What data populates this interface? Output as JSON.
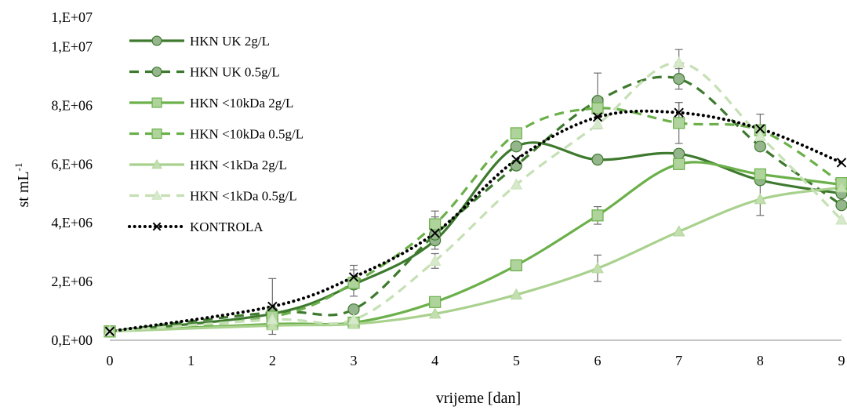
{
  "chart_data": {
    "type": "line",
    "title": "",
    "xlabel": "vrijeme [dan]",
    "ylabel": "st mL",
    "ylabel_superscript": "-1",
    "xlim": [
      0,
      9
    ],
    "ylim": [
      0,
      11000000
    ],
    "x_ticks": [
      0,
      1,
      2,
      3,
      4,
      5,
      6,
      7,
      8,
      9
    ],
    "y_ticks": [
      {
        "value": 0,
        "label": "0,E+00"
      },
      {
        "value": 2000000,
        "label": "2,E+06"
      },
      {
        "value": 4000000,
        "label": "4,E+06"
      },
      {
        "value": 6000000,
        "label": "6,E+06"
      },
      {
        "value": 8000000,
        "label": "8,E+06"
      },
      {
        "value": 10000000,
        "label": "1,E+07"
      },
      {
        "value": 11000000,
        "label": "1,E+07"
      }
    ],
    "grid": false,
    "legend_position": "top-left",
    "x": [
      0,
      2,
      3,
      4,
      5,
      6,
      7,
      8,
      9
    ],
    "series": [
      {
        "name": "HKN UK 2g/L",
        "color": "#3E7A2E",
        "dash": "solid",
        "marker": "circle",
        "values": [
          300000,
          900000,
          1900000,
          3400000,
          6600000,
          6150000,
          6350000,
          5450000,
          5000000
        ],
        "errors": [
          0,
          0,
          0,
          0,
          0,
          0,
          0,
          0,
          0
        ]
      },
      {
        "name": "HKN UK 0.5g/L",
        "color": "#3E7A2E",
        "dash": "dashed",
        "marker": "circle",
        "values": [
          300000,
          950000,
          1050000,
          3600000,
          5950000,
          8150000,
          8900000,
          6600000,
          4600000
        ],
        "errors": [
          0,
          0,
          0,
          0,
          0,
          950000,
          350000,
          0,
          0
        ]
      },
      {
        "name": "HKN <10kDa 2g/L",
        "color": "#6BB04A",
        "dash": "solid",
        "marker": "square",
        "values": [
          300000,
          550000,
          600000,
          1300000,
          2550000,
          4250000,
          6000000,
          5650000,
          5300000
        ],
        "errors": [
          0,
          0,
          0,
          0,
          0,
          300000,
          0,
          0,
          0
        ]
      },
      {
        "name": "HKN <10kDa 0.5g/L",
        "color": "#6BB04A",
        "dash": "dashed",
        "marker": "square",
        "values": [
          300000,
          800000,
          1950000,
          3950000,
          7050000,
          7900000,
          7400000,
          7150000,
          5350000
        ],
        "errors": [
          0,
          0,
          450000,
          450000,
          0,
          300000,
          700000,
          0,
          0
        ]
      },
      {
        "name": "HKN <1kDa 2g/L",
        "color": "#A9D18E",
        "dash": "solid",
        "marker": "triangle",
        "values": [
          300000,
          500000,
          550000,
          900000,
          1550000,
          2450000,
          3700000,
          4800000,
          5200000
        ],
        "errors": [
          0,
          0,
          0,
          0,
          0,
          450000,
          0,
          550000,
          0
        ]
      },
      {
        "name": "HKN <1kDa 0.5g/L",
        "color": "#C5E0B4",
        "dash": "dashed",
        "marker": "triangle",
        "values": [
          300000,
          700000,
          700000,
          2700000,
          5300000,
          7350000,
          9450000,
          6950000,
          4100000
        ],
        "errors": [
          0,
          0,
          0,
          250000,
          0,
          0,
          450000,
          0,
          0
        ]
      },
      {
        "name": "KONTROLA",
        "color": "#000000",
        "dash": "dotted",
        "marker": "x",
        "values": [
          300000,
          1150000,
          2150000,
          3650000,
          6150000,
          7600000,
          7750000,
          7200000,
          6050000
        ],
        "errors": [
          0,
          950000,
          400000,
          550000,
          0,
          0,
          350000,
          500000,
          0
        ]
      }
    ]
  }
}
